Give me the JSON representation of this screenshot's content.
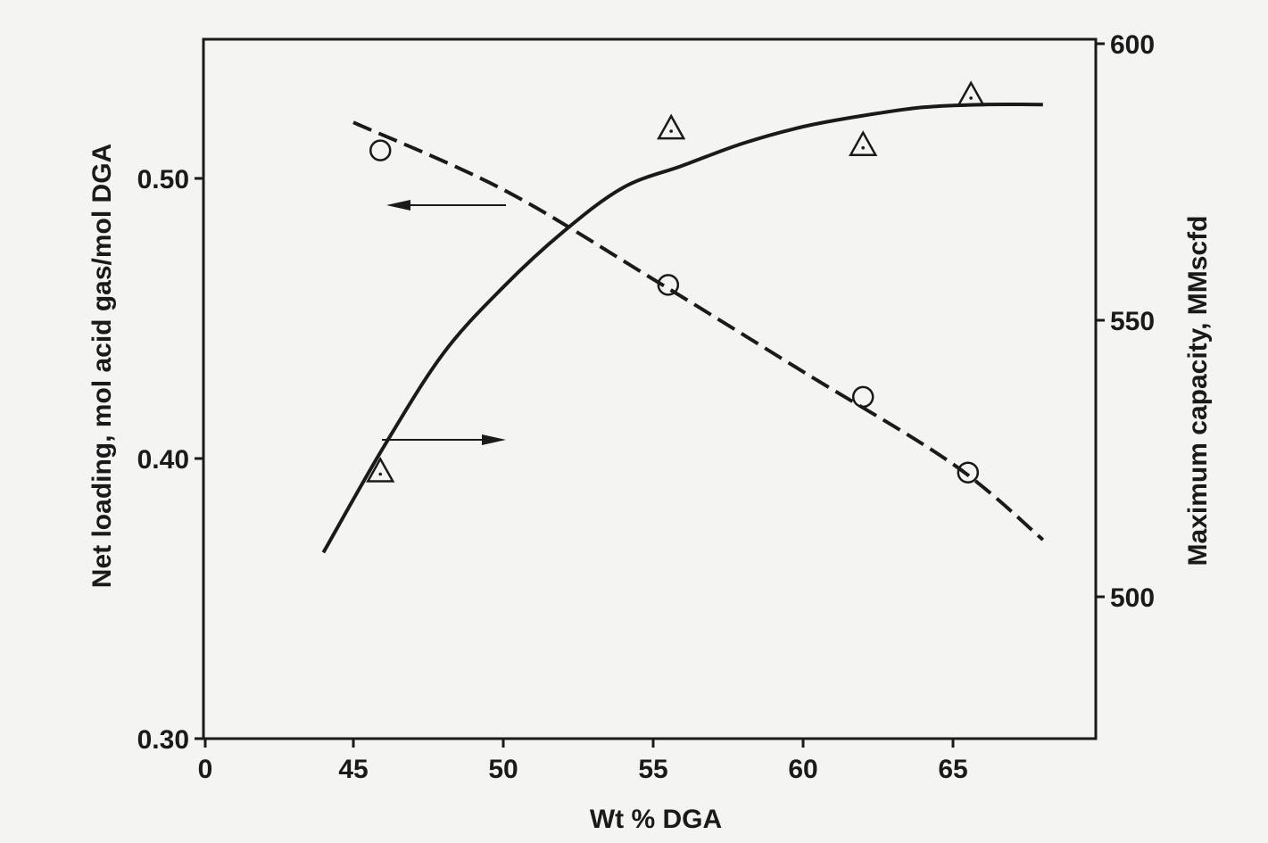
{
  "chart_data": {
    "type": "line",
    "title": "",
    "xlabel": "Wt % DGA",
    "ylabel_left": "Net loading, mol acid gas/mol DGA",
    "ylabel_right": "Maximum capacity, MMscfd",
    "x_tick_labels": [
      "0",
      "45",
      "50",
      "55",
      "60",
      "65"
    ],
    "x_ticks": [
      45,
      50,
      55,
      60,
      65
    ],
    "x_axis_break_label": "0",
    "xlim": [
      41.0,
      71.0
    ],
    "y_left_tick_labels": [
      "0.30",
      "0.40",
      "0.50"
    ],
    "y_left_ticks": [
      0.3,
      0.4,
      0.5
    ],
    "ylim_left": [
      0.3,
      0.548
    ],
    "y_right_tick_labels": [
      "500",
      "550",
      "600"
    ],
    "y_right_ticks": [
      500,
      550,
      600
    ],
    "ylim_right": [
      475,
      600
    ],
    "grid": false,
    "series": [
      {
        "axis": "left",
        "style": "dashed",
        "marker": "circle",
        "x": [
          45,
          50,
          55,
          60,
          65,
          68
        ],
        "y": [
          0.52,
          0.496,
          0.464,
          0.431,
          0.398,
          0.371
        ],
        "points": {
          "x": [
            45.9,
            55.5,
            62.0,
            65.5
          ],
          "y": [
            0.51,
            0.462,
            0.422,
            0.395
          ]
        }
      },
      {
        "axis": "right",
        "style": "solid",
        "marker": "triangle",
        "x": [
          44,
          46,
          48,
          50,
          52,
          54,
          56,
          58,
          60,
          62,
          64,
          66,
          68
        ],
        "y": [
          508,
          527,
          544,
          556,
          566,
          574,
          578,
          582,
          585,
          587,
          588.5,
          589,
          589
        ],
        "points": {
          "x": [
            45.9,
            55.6,
            62.0,
            65.6
          ],
          "y": [
            522.5,
            584.5,
            581.5,
            590.5
          ]
        }
      }
    ],
    "annotations": [
      {
        "type": "arrow",
        "direction": "left",
        "indicates": "left axis"
      },
      {
        "type": "arrow",
        "direction": "right",
        "indicates": "right axis"
      }
    ]
  }
}
